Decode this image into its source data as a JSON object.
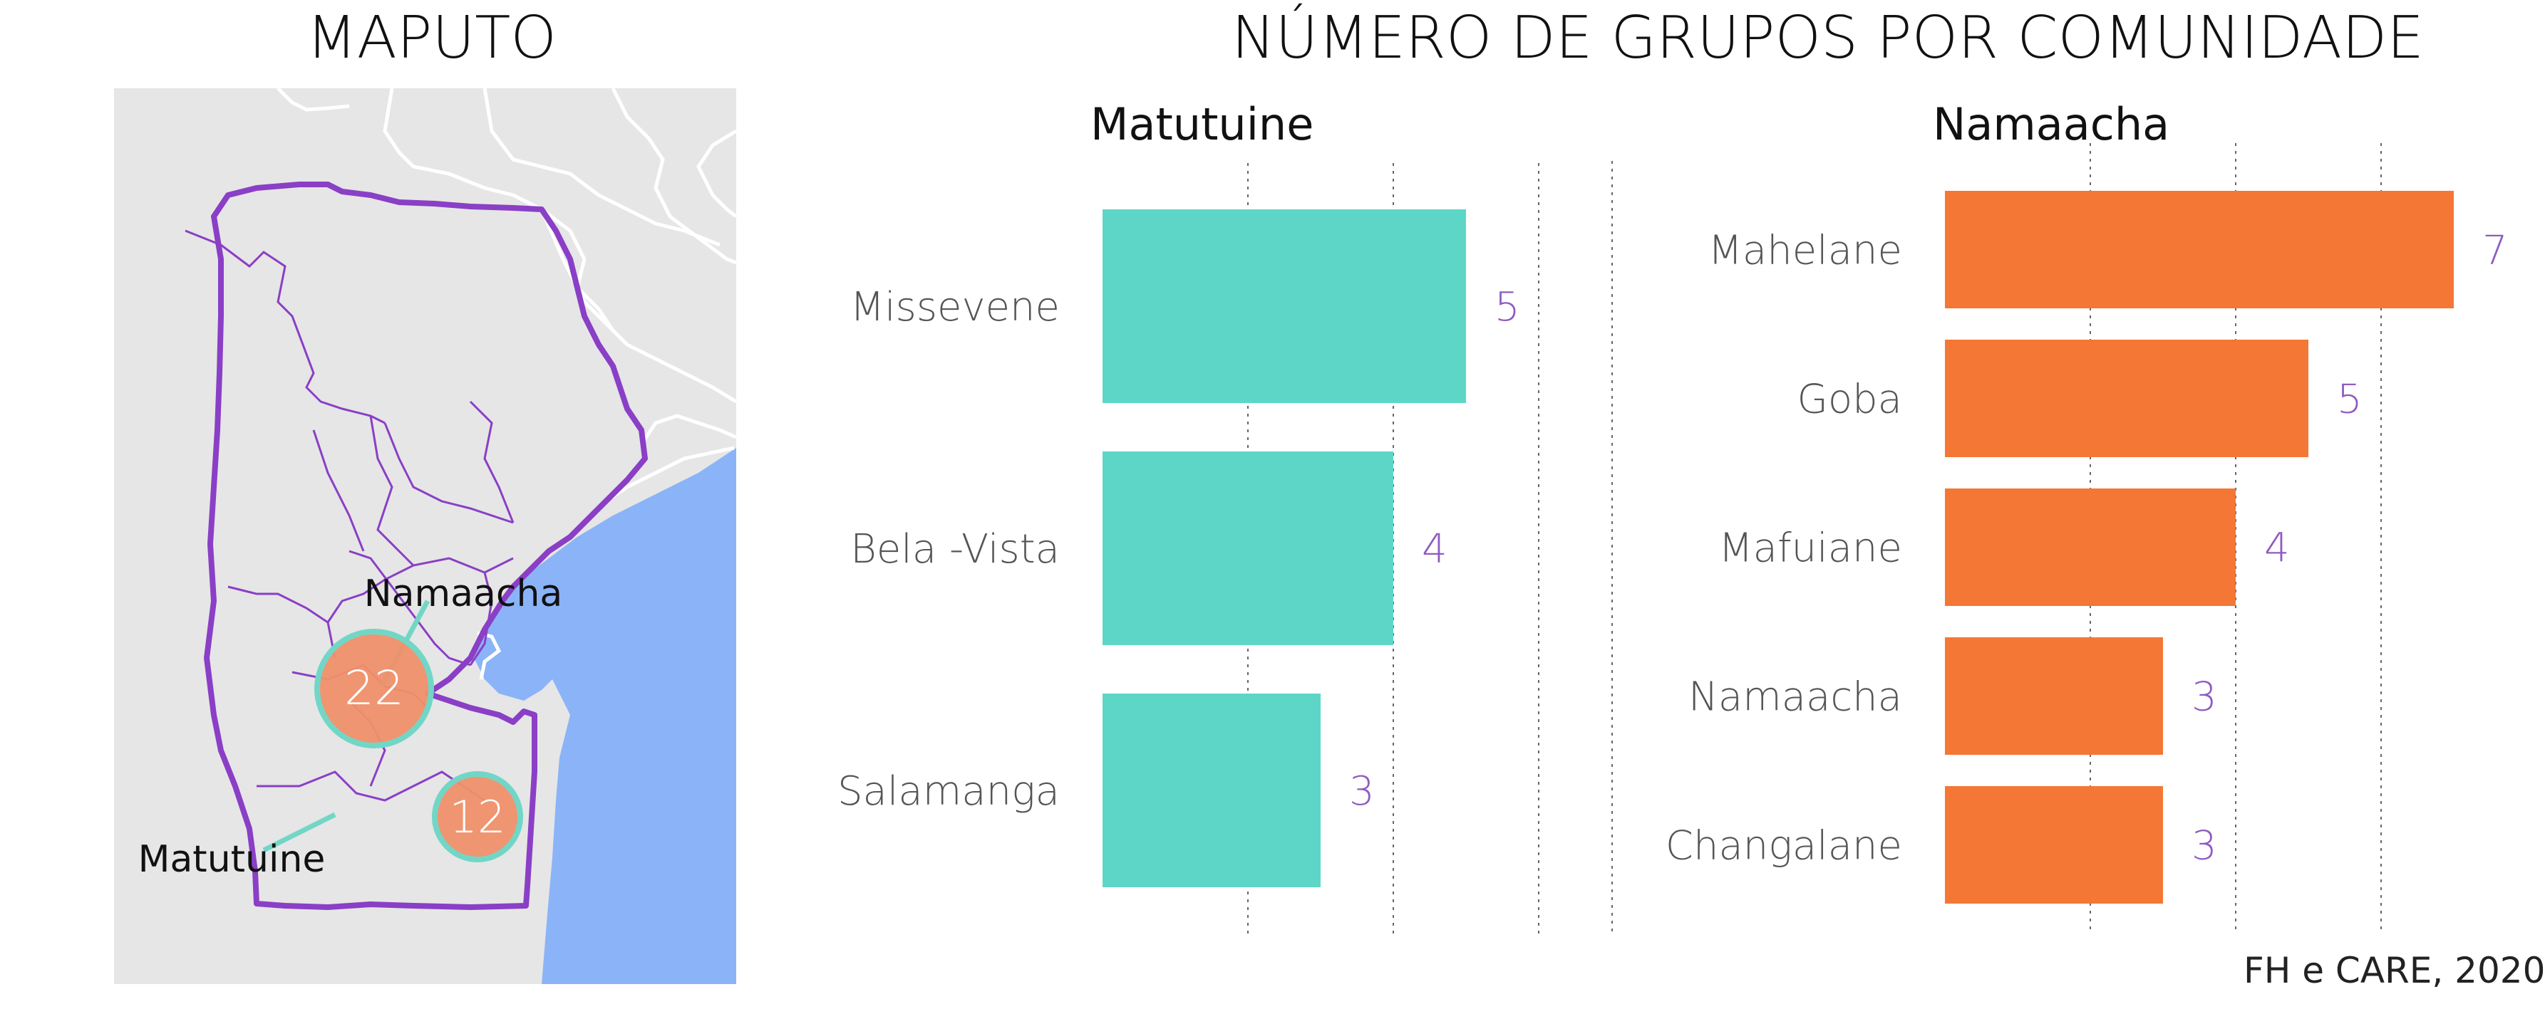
{
  "map": {
    "title": "MAPUTO",
    "land_color": "#e6e6e6",
    "sea_color": "#8ab4f7",
    "border_color": "#8a3fc6",
    "bubble_fill": "#f0906a",
    "bubble_stroke": "#72d6c6",
    "bubbles": [
      {
        "value": "22",
        "label": "Namaacha"
      },
      {
        "value": "12",
        "label": "Matutuine"
      }
    ]
  },
  "title": "NÚMERO DE GRUPOS POR COMUNIDADE",
  "source": "FH e CARE, 2020",
  "chart_data": [
    {
      "type": "bar",
      "orientation": "horizontal",
      "title": "Matutuine",
      "categories": [
        "Missevene",
        "Bela -Vista",
        "Salamanga"
      ],
      "values": [
        5,
        4,
        3
      ],
      "xlim": [
        0,
        7
      ],
      "grid": true,
      "color": "#5dd6c7",
      "label_color": "#8e5bc0"
    },
    {
      "type": "bar",
      "orientation": "horizontal",
      "title": "Namaacha",
      "categories": [
        "Mahelane",
        "Goba",
        "Mafuiane",
        "Namaacha",
        "Changalane"
      ],
      "values": [
        7,
        5,
        4,
        3,
        3
      ],
      "xlim": [
        0,
        7
      ],
      "grid": true,
      "color": "#f47735",
      "label_color": "#8e5bc0"
    }
  ]
}
